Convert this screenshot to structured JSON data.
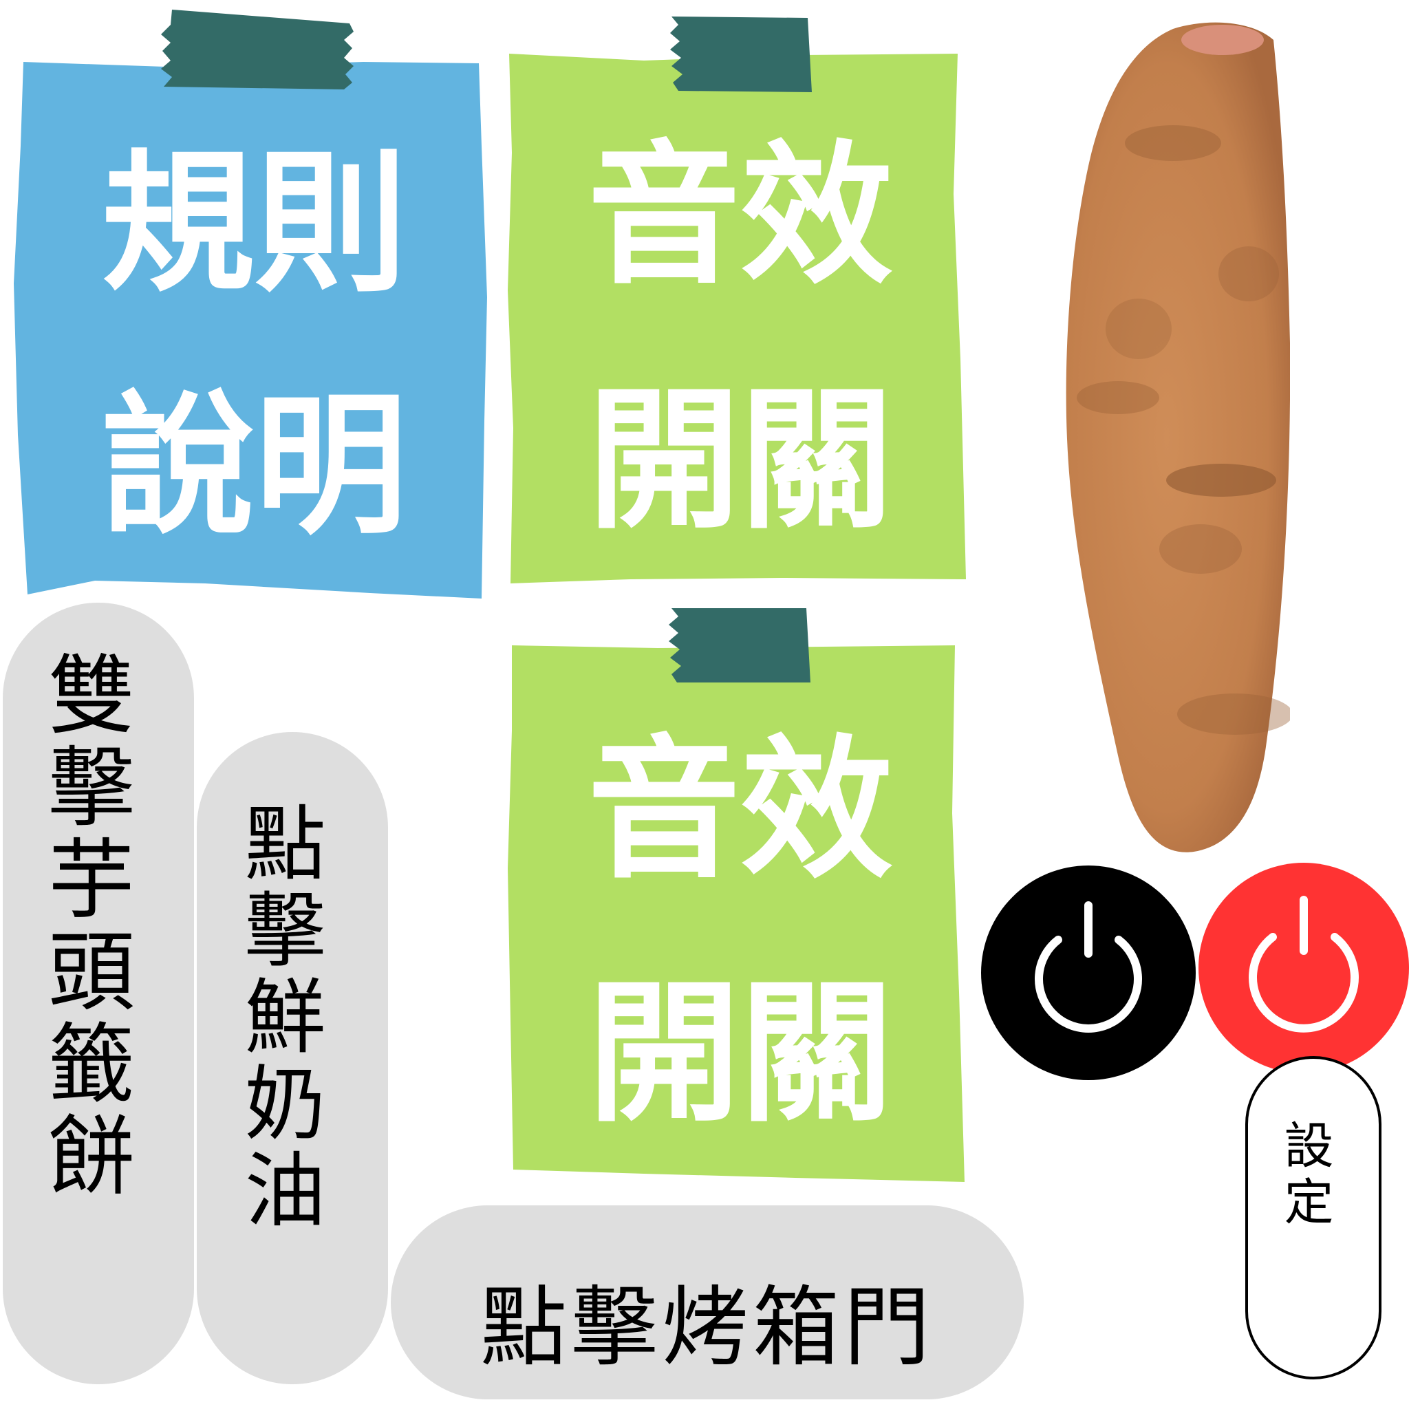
{
  "colors": {
    "rules_card": "#62b4e0",
    "sound_card": "#b2df63",
    "tape": "#336b67",
    "pill_bg": "#dedede",
    "power_off": "#000000",
    "power_on": "#ff3333",
    "potato": "#c68552"
  },
  "cards": {
    "rules": {
      "line1": "規則",
      "line2": "說明"
    },
    "sound_on": {
      "line1": "音效",
      "line2": "開關"
    },
    "sound_off": {
      "line1": "音效",
      "line2": "開關"
    }
  },
  "buttons": {
    "double_click_taro_cake": "雙擊芋頭籤餅",
    "click_fresh_cream": "點擊鮮奶油",
    "click_oven_door": "點擊烤箱門",
    "settings": "設定"
  },
  "icons": {
    "power_off": "power-icon",
    "power_on": "power-icon",
    "sweet_potato": "sweet-potato-image"
  }
}
